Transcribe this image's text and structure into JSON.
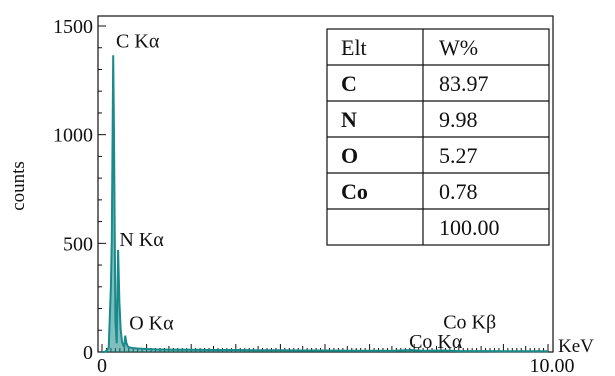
{
  "chart_data": {
    "type": "line",
    "ylabel": "counts",
    "xlabel": "KeV",
    "xlim": [
      0,
      10
    ],
    "ylim": [
      0,
      1500
    ],
    "x_ticks": [
      "0",
      "10.00"
    ],
    "y_ticks": [
      "0",
      "500",
      "1000",
      "1500"
    ],
    "y_tick_values": [
      0,
      500,
      1000,
      1500
    ],
    "grid": false,
    "color": "#1a8a8a",
    "series": [
      {
        "x": [
          0,
          0.05,
          0.1,
          0.15,
          0.2,
          0.22,
          0.25,
          0.27,
          0.3,
          0.33,
          0.36,
          0.39,
          0.42,
          0.45,
          0.48,
          0.5,
          0.52,
          0.55,
          0.58,
          0.6,
          0.65,
          0.7,
          0.8,
          0.9,
          1.0,
          1.2,
          1.5,
          2.0,
          2.5,
          3.0,
          3.5,
          4.0,
          4.5,
          5.0,
          5.5,
          6.0,
          6.5,
          6.93,
          7.2,
          7.65,
          8.0,
          8.5,
          9.0,
          9.5,
          10.0
        ],
        "y": [
          0,
          0,
          5,
          20,
          300,
          520,
          1365,
          1000,
          140,
          40,
          470,
          230,
          100,
          45,
          30,
          25,
          75,
          40,
          25,
          22,
          20,
          18,
          16,
          15,
          14,
          12,
          11,
          10,
          9,
          9,
          8,
          8,
          7,
          7,
          6,
          6,
          5,
          9,
          5,
          7,
          4,
          4,
          3,
          3,
          3
        ]
      }
    ],
    "peak_labels": [
      {
        "text": "C Kα",
        "x": 0.27,
        "y": 1365
      },
      {
        "text": "N Kα",
        "x": 0.39,
        "y": 470
      },
      {
        "text": "O Kα",
        "x": 0.52,
        "y": 75
      },
      {
        "text": "Co Kα",
        "x": 6.93,
        "y": 9
      },
      {
        "text": "Co Kβ",
        "x": 7.65,
        "y": 7
      }
    ]
  },
  "table": {
    "headers": [
      "Elt",
      "W%"
    ],
    "rows": [
      {
        "elt": "C",
        "w": "83.97"
      },
      {
        "elt": "N",
        "w": "9.98"
      },
      {
        "elt": "O",
        "w": "5.27"
      },
      {
        "elt": "Co",
        "w": "0.78"
      },
      {
        "elt": "",
        "w": "100.00"
      }
    ]
  }
}
